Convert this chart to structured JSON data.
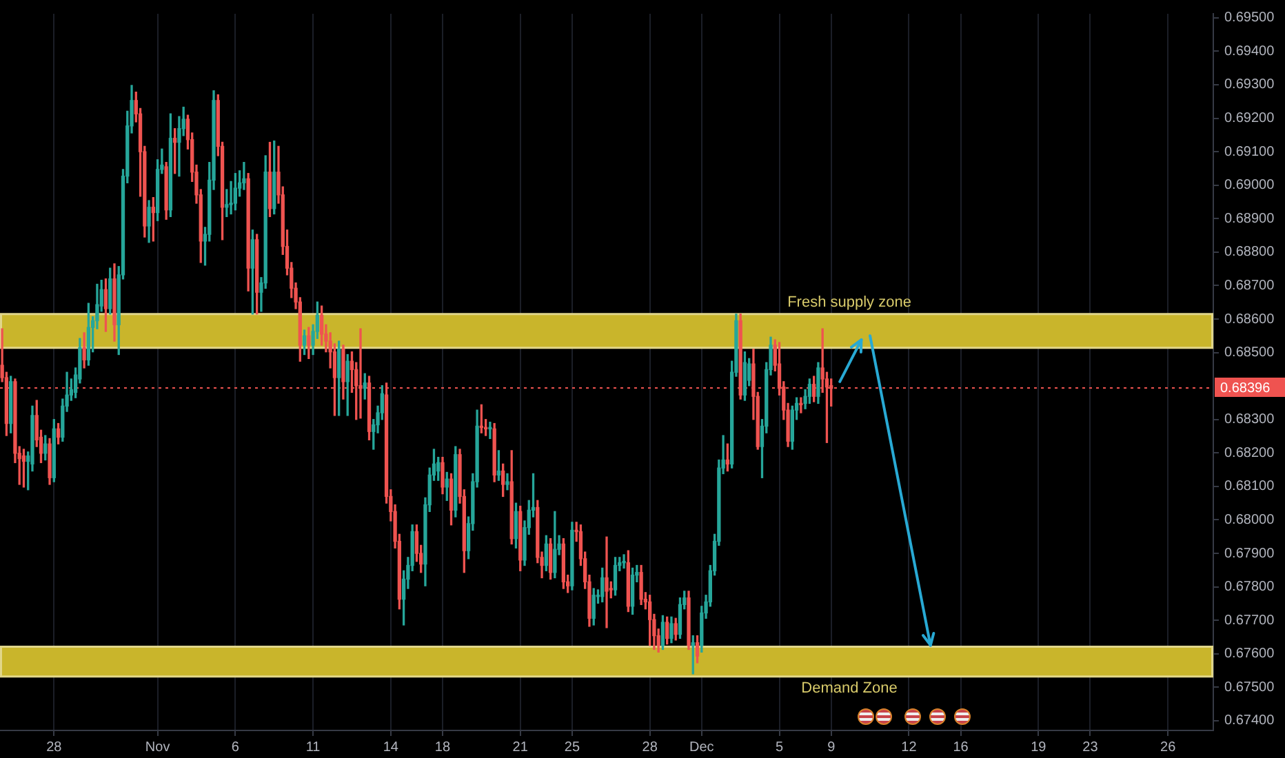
{
  "chart_data": {
    "type": "candlestick",
    "categories": [
      null,
      null,
      null,
      null,
      null,
      null,
      null,
      null,
      null,
      null,
      null,
      null,
      "28",
      null,
      null,
      null,
      null,
      null,
      null,
      null,
      null,
      null,
      null,
      null,
      null,
      null,
      null,
      null,
      null,
      null,
      null,
      null,
      null,
      null,
      null,
      null,
      "Nov",
      null,
      null,
      null,
      null,
      null,
      null,
      null,
      null,
      null,
      null,
      null,
      null,
      null,
      null,
      null,
      null,
      null,
      "6",
      null,
      null,
      null,
      null,
      null,
      null,
      null,
      null,
      null,
      null,
      null,
      null,
      null,
      null,
      null,
      null,
      null,
      "11",
      null,
      null,
      null,
      null,
      null,
      null,
      null,
      null,
      null,
      null,
      null,
      null,
      null,
      null,
      null,
      null,
      null,
      "14",
      null,
      null,
      null,
      null,
      null,
      null,
      null,
      null,
      null,
      null,
      null,
      "18",
      null,
      null,
      null,
      null,
      null,
      null,
      null,
      null,
      null,
      null,
      null,
      null,
      null,
      null,
      null,
      null,
      null,
      "21",
      null,
      null,
      null,
      null,
      null,
      null,
      null,
      null,
      null,
      null,
      null,
      "25",
      null,
      null,
      null,
      null,
      null,
      null,
      null,
      null,
      null,
      null,
      null,
      null,
      null,
      null,
      null,
      null,
      null,
      "28",
      null,
      null,
      null,
      null,
      null,
      null,
      null,
      null,
      null,
      null,
      null,
      "Dec",
      null,
      null,
      null,
      null,
      null,
      null,
      null,
      null,
      null,
      null,
      null,
      null,
      null,
      null,
      null,
      null,
      null,
      "5",
      null,
      null,
      null,
      null,
      null,
      null,
      null,
      null,
      null,
      null,
      null,
      "9",
      null,
      null,
      null,
      null,
      null,
      null,
      null,
      null,
      null,
      null,
      null,
      null,
      null,
      null,
      null,
      null,
      null,
      "12",
      null,
      null,
      null,
      null,
      null,
      null,
      null,
      null,
      null,
      null,
      null,
      "16",
      null,
      null,
      null,
      null,
      null,
      null,
      null,
      null,
      null,
      null,
      null,
      null,
      null,
      null,
      null,
      null,
      null,
      "19",
      null,
      null,
      null,
      null,
      null,
      null,
      null,
      null,
      null,
      null,
      null,
      "23",
      null,
      null,
      null,
      null,
      null,
      null,
      null,
      null,
      null,
      null,
      null,
      null,
      null,
      null,
      null,
      null,
      null,
      "26",
      null,
      null,
      null,
      null,
      null,
      null,
      null,
      null,
      null,
      null
    ],
    "ohlc": [
      [
        0.68462,
        0.68571,
        0.68413,
        0.68425
      ],
      [
        0.68425,
        0.68441,
        0.68252,
        0.68288
      ],
      [
        0.68288,
        0.68429,
        0.6826,
        0.68413
      ],
      [
        0.68413,
        0.68421,
        0.68171,
        0.68199
      ],
      [
        0.68199,
        0.68219,
        0.68106,
        0.68183
      ],
      [
        0.68191,
        0.68211,
        0.68098,
        0.68175
      ],
      [
        0.68175,
        0.68203,
        0.6809,
        0.68191
      ],
      [
        0.68167,
        0.6834,
        0.68146,
        0.68312
      ],
      [
        0.68312,
        0.68357,
        0.68219,
        0.68239
      ],
      [
        0.68247,
        0.68268,
        0.68171,
        0.68199
      ],
      [
        0.68199,
        0.68252,
        0.68179,
        0.68227
      ],
      [
        0.68227,
        0.68243,
        0.68106,
        0.68126
      ],
      [
        0.68126,
        0.683,
        0.68114,
        0.68272
      ],
      [
        0.68272,
        0.68288,
        0.68227,
        0.68247
      ],
      [
        0.68247,
        0.68361,
        0.68235,
        0.6834
      ],
      [
        0.6834,
        0.68441,
        0.68324,
        0.68373
      ],
      [
        0.68373,
        0.68421,
        0.68357,
        0.68389
      ],
      [
        0.68381,
        0.68454,
        0.68365,
        0.68433
      ],
      [
        0.68421,
        0.68542,
        0.68409,
        0.68514
      ],
      [
        0.68514,
        0.68559,
        0.68454,
        0.68478
      ],
      [
        0.68478,
        0.68647,
        0.68462,
        0.68575
      ],
      [
        0.68575,
        0.68607,
        0.68502,
        0.68595
      ],
      [
        0.68595,
        0.68704,
        0.68571,
        0.68643
      ],
      [
        0.68639,
        0.68716,
        0.68623,
        0.68688
      ],
      [
        0.68688,
        0.6872,
        0.68563,
        0.68631
      ],
      [
        0.68631,
        0.68752,
        0.68615,
        0.6872
      ],
      [
        0.6872,
        0.68765,
        0.68534,
        0.68583
      ],
      [
        0.68583,
        0.68757,
        0.68494,
        0.68732
      ],
      [
        0.68732,
        0.69047,
        0.6872,
        0.69027
      ],
      [
        0.69027,
        0.69221,
        0.69007,
        0.69177
      ],
      [
        0.69177,
        0.69298,
        0.69156,
        0.69253
      ],
      [
        0.69253,
        0.69278,
        0.69189,
        0.69213
      ],
      [
        0.69213,
        0.69229,
        0.68967,
        0.691
      ],
      [
        0.691,
        0.69116,
        0.68845,
        0.68878
      ],
      [
        0.68878,
        0.68954,
        0.68829,
        0.68934
      ],
      [
        0.68934,
        0.68963,
        0.68833,
        0.68918
      ],
      [
        0.68918,
        0.69076,
        0.68894,
        0.69047
      ],
      [
        0.69047,
        0.69108,
        0.69035,
        0.6906
      ],
      [
        0.69055,
        0.69068,
        0.68898,
        0.68926
      ],
      [
        0.68926,
        0.69213,
        0.68906,
        0.6914
      ],
      [
        0.6914,
        0.69169,
        0.69035,
        0.69128
      ],
      [
        0.69128,
        0.69205,
        0.69027,
        0.69169
      ],
      [
        0.69169,
        0.69233,
        0.69148,
        0.69197
      ],
      [
        0.69197,
        0.69209,
        0.69108,
        0.69136
      ],
      [
        0.69136,
        0.69156,
        0.69011,
        0.69039
      ],
      [
        0.69039,
        0.6906,
        0.68946,
        0.68971
      ],
      [
        0.68971,
        0.68987,
        0.68769,
        0.68833
      ],
      [
        0.68833,
        0.68874,
        0.68761,
        0.68853
      ],
      [
        0.68853,
        0.69068,
        0.68833,
        0.69015
      ],
      [
        0.69015,
        0.69282,
        0.68987,
        0.69253
      ],
      [
        0.69253,
        0.6927,
        0.69088,
        0.69116
      ],
      [
        0.69116,
        0.69128,
        0.68837,
        0.68934
      ],
      [
        0.68934,
        0.68987,
        0.68906,
        0.68942
      ],
      [
        0.68942,
        0.69011,
        0.68914,
        0.68946
      ],
      [
        0.68946,
        0.69035,
        0.68926,
        0.68991
      ],
      [
        0.68991,
        0.69043,
        0.68967,
        0.69007
      ],
      [
        0.69007,
        0.69068,
        0.68987,
        0.69019
      ],
      [
        0.69019,
        0.69035,
        0.68684,
        0.68752
      ],
      [
        0.68752,
        0.68866,
        0.68615,
        0.68837
      ],
      [
        0.68837,
        0.68853,
        0.68615,
        0.6868
      ],
      [
        0.6868,
        0.68724,
        0.68623,
        0.68708
      ],
      [
        0.68708,
        0.69088,
        0.68692,
        0.69039
      ],
      [
        0.69039,
        0.69128,
        0.68906,
        0.6893
      ],
      [
        0.6893,
        0.69132,
        0.68914,
        0.69039
      ],
      [
        0.69039,
        0.69116,
        0.68946,
        0.68971
      ],
      [
        0.68971,
        0.68995,
        0.68793,
        0.68817
      ],
      [
        0.68817,
        0.68866,
        0.68732,
        0.68752
      ],
      [
        0.68752,
        0.68769,
        0.68664,
        0.68692
      ],
      [
        0.68692,
        0.68708,
        0.68631,
        0.68651
      ],
      [
        0.68651,
        0.68664,
        0.68474,
        0.68522
      ],
      [
        0.68522,
        0.68567,
        0.68494,
        0.6855
      ],
      [
        0.6855,
        0.68575,
        0.68482,
        0.68522
      ],
      [
        0.68522,
        0.68583,
        0.68494,
        0.68563
      ],
      [
        0.68563,
        0.68651,
        0.68542,
        0.68611
      ],
      [
        0.68611,
        0.68639,
        0.68522,
        0.68555
      ],
      [
        0.68555,
        0.68583,
        0.68502,
        0.68534
      ],
      [
        0.68534,
        0.68559,
        0.68454,
        0.68502
      ],
      [
        0.68502,
        0.68526,
        0.68312,
        0.68425
      ],
      [
        0.68425,
        0.68534,
        0.68312,
        0.6851
      ],
      [
        0.6851,
        0.68522,
        0.68361,
        0.68413
      ],
      [
        0.68413,
        0.68494,
        0.68312,
        0.68474
      ],
      [
        0.68474,
        0.68502,
        0.68381,
        0.68449
      ],
      [
        0.68449,
        0.6847,
        0.683,
        0.68401
      ],
      [
        0.68401,
        0.68571,
        0.68304,
        0.68393
      ],
      [
        0.68393,
        0.68437,
        0.68361,
        0.68409
      ],
      [
        0.68409,
        0.68429,
        0.68239,
        0.68264
      ],
      [
        0.68264,
        0.683,
        0.68211,
        0.68284
      ],
      [
        0.68284,
        0.6834,
        0.6826,
        0.6832
      ],
      [
        0.6832,
        0.68401,
        0.683,
        0.68377
      ],
      [
        0.68373,
        0.68409,
        0.6805,
        0.6807
      ],
      [
        0.6807,
        0.6809,
        0.67997,
        0.68025
      ],
      [
        0.68025,
        0.68045,
        0.67916,
        0.67936
      ],
      [
        0.67936,
        0.67957,
        0.67734,
        0.67763
      ],
      [
        0.67763,
        0.67848,
        0.67686,
        0.67823
      ],
      [
        0.67823,
        0.67888,
        0.67795,
        0.67864
      ],
      [
        0.67864,
        0.67985,
        0.67848,
        0.67965
      ],
      [
        0.67965,
        0.67985,
        0.67876,
        0.679
      ],
      [
        0.679,
        0.67924,
        0.67843,
        0.67868
      ],
      [
        0.67868,
        0.68066,
        0.67803,
        0.68045
      ],
      [
        0.68045,
        0.68155,
        0.68025,
        0.68134
      ],
      [
        0.68134,
        0.68211,
        0.68118,
        0.68167
      ],
      [
        0.68146,
        0.68187,
        0.68118,
        0.68171
      ],
      [
        0.68171,
        0.68187,
        0.68078,
        0.68098
      ],
      [
        0.68098,
        0.68142,
        0.68058,
        0.68122
      ],
      [
        0.68122,
        0.68138,
        0.67985,
        0.68029
      ],
      [
        0.68029,
        0.68219,
        0.68009,
        0.68195
      ],
      [
        0.68195,
        0.68211,
        0.6805,
        0.6807
      ],
      [
        0.6807,
        0.6809,
        0.67843,
        0.67908
      ],
      [
        0.67908,
        0.68009,
        0.67884,
        0.67989
      ],
      [
        0.67989,
        0.68138,
        0.67969,
        0.68114
      ],
      [
        0.68114,
        0.68328,
        0.68098,
        0.6828
      ],
      [
        0.6828,
        0.68344,
        0.6826,
        0.68276
      ],
      [
        0.68276,
        0.683,
        0.68252,
        0.68272
      ],
      [
        0.68272,
        0.68292,
        0.68243,
        0.68276
      ],
      [
        0.68272,
        0.68288,
        0.68114,
        0.68134
      ],
      [
        0.68134,
        0.68207,
        0.68118,
        0.68146
      ],
      [
        0.68146,
        0.68167,
        0.6807,
        0.68106
      ],
      [
        0.68106,
        0.68138,
        0.6809,
        0.68114
      ],
      [
        0.68114,
        0.68207,
        0.67928,
        0.67944
      ],
      [
        0.67944,
        0.6805,
        0.67916,
        0.68025
      ],
      [
        0.68025,
        0.68041,
        0.67848,
        0.6788
      ],
      [
        0.6788,
        0.67997,
        0.67864,
        0.67977
      ],
      [
        0.67977,
        0.68058,
        0.67957,
        0.68029
      ],
      [
        0.68029,
        0.68138,
        0.68009,
        0.68037
      ],
      [
        0.68037,
        0.68058,
        0.67872,
        0.67888
      ],
      [
        0.67888,
        0.67904,
        0.67827,
        0.67864
      ],
      [
        0.67864,
        0.67953,
        0.67848,
        0.67928
      ],
      [
        0.67928,
        0.67944,
        0.67823,
        0.67843
      ],
      [
        0.67843,
        0.68025,
        0.67827,
        0.67912
      ],
      [
        0.67912,
        0.67953,
        0.67896,
        0.67928
      ],
      [
        0.67928,
        0.67944,
        0.67795,
        0.67815
      ],
      [
        0.67815,
        0.67835,
        0.67783,
        0.67803
      ],
      [
        0.67803,
        0.67993,
        0.67791,
        0.67969
      ],
      [
        0.67969,
        0.67993,
        0.67936,
        0.67965
      ],
      [
        0.67965,
        0.67985,
        0.67864,
        0.67884
      ],
      [
        0.67884,
        0.67904,
        0.67795,
        0.67815
      ],
      [
        0.67815,
        0.67835,
        0.67682,
        0.67706
      ],
      [
        0.67706,
        0.67795,
        0.67686,
        0.67775
      ],
      [
        0.67771,
        0.67791,
        0.67751,
        0.67775
      ],
      [
        0.67771,
        0.67856,
        0.67755,
        0.67827
      ],
      [
        0.67827,
        0.67949,
        0.67678,
        0.67787
      ],
      [
        0.67795,
        0.67815,
        0.67767,
        0.67791
      ],
      [
        0.67791,
        0.67888,
        0.67775,
        0.67864
      ],
      [
        0.67864,
        0.67888,
        0.67848,
        0.67872
      ],
      [
        0.67872,
        0.67896,
        0.67856,
        0.67876
      ],
      [
        0.67872,
        0.67908,
        0.67726,
        0.67742
      ],
      [
        0.67742,
        0.67856,
        0.67718,
        0.67835
      ],
      [
        0.67835,
        0.67864,
        0.67815,
        0.67843
      ],
      [
        0.67843,
        0.67864,
        0.67747,
        0.67763
      ],
      [
        0.67763,
        0.67783,
        0.67734,
        0.67755
      ],
      [
        0.67755,
        0.67775,
        0.67625,
        0.67702
      ],
      [
        0.67702,
        0.67718,
        0.67613,
        0.67654
      ],
      [
        0.67654,
        0.67674,
        0.67605,
        0.67625
      ],
      [
        0.67625,
        0.67714,
        0.67613,
        0.67694
      ],
      [
        0.67694,
        0.6771,
        0.67629,
        0.67646
      ],
      [
        0.67646,
        0.6771,
        0.67633,
        0.6769
      ],
      [
        0.6769,
        0.67706,
        0.67641,
        0.67658
      ],
      [
        0.67658,
        0.67767,
        0.67646,
        0.67747
      ],
      [
        0.67747,
        0.67787,
        0.67734,
        0.67767
      ],
      [
        0.67767,
        0.67787,
        0.67613,
        0.67625
      ],
      [
        0.67625,
        0.67654,
        0.6754,
        0.67633
      ],
      [
        0.67633,
        0.67654,
        0.67573,
        0.67593
      ],
      [
        0.67625,
        0.67742,
        0.67605,
        0.67722
      ],
      [
        0.67722,
        0.67775,
        0.67706,
        0.67755
      ],
      [
        0.67755,
        0.67864,
        0.67742,
        0.67848
      ],
      [
        0.67848,
        0.67957,
        0.67835,
        0.67936
      ],
      [
        0.67936,
        0.68179,
        0.67924,
        0.68155
      ],
      [
        0.68155,
        0.68252,
        0.68138,
        0.68179
      ],
      [
        0.68179,
        0.68227,
        0.68146,
        0.68167
      ],
      [
        0.68167,
        0.68474,
        0.68155,
        0.68441
      ],
      [
        0.68441,
        0.68615,
        0.68429,
        0.68595
      ],
      [
        0.68595,
        0.68615,
        0.68361,
        0.68373
      ],
      [
        0.68373,
        0.68502,
        0.68357,
        0.6847
      ],
      [
        0.68417,
        0.68482,
        0.68401,
        0.68466
      ],
      [
        0.68466,
        0.6851,
        0.683,
        0.68369
      ],
      [
        0.68369,
        0.68381,
        0.68211,
        0.68219
      ],
      [
        0.68219,
        0.683,
        0.68126,
        0.6828
      ],
      [
        0.6828,
        0.6847,
        0.6826,
        0.68449
      ],
      [
        0.68449,
        0.68546,
        0.68433,
        0.68522
      ],
      [
        0.68522,
        0.68538,
        0.68445,
        0.68462
      ],
      [
        0.68466,
        0.6853,
        0.68373,
        0.68393
      ],
      [
        0.68397,
        0.68413,
        0.683,
        0.68328
      ],
      [
        0.68328,
        0.68348,
        0.68219,
        0.68235
      ],
      [
        0.68235,
        0.6834,
        0.68211,
        0.68328
      ],
      [
        0.68328,
        0.68365,
        0.683,
        0.68348
      ],
      [
        0.68348,
        0.68365,
        0.6832,
        0.68344
      ],
      [
        0.68348,
        0.68389,
        0.68332,
        0.68369
      ],
      [
        0.68369,
        0.68421,
        0.68348,
        0.68405
      ],
      [
        0.68405,
        0.68429,
        0.68353,
        0.68369
      ],
      [
        0.68369,
        0.6847,
        0.68348,
        0.68454
      ],
      [
        0.68454,
        0.68571,
        0.68381,
        0.68421
      ],
      [
        0.68421,
        0.68441,
        0.68231,
        0.68397
      ],
      [
        0.68401,
        0.68421,
        0.6834,
        0.68393
      ],
      null,
      null,
      null,
      null,
      null,
      null,
      null,
      null,
      null,
      null,
      null,
      null,
      null,
      null,
      null,
      null,
      null,
      null,
      null,
      null,
      null,
      null,
      null,
      null,
      null,
      null,
      null,
      null,
      null,
      null,
      null,
      null,
      null,
      null,
      null,
      null,
      null,
      null,
      null,
      null,
      null,
      null,
      null,
      null,
      null,
      null,
      null,
      null,
      null,
      null,
      null,
      null,
      null,
      null,
      null,
      null,
      null,
      null,
      null,
      null,
      null,
      null,
      null,
      null,
      null,
      null,
      null,
      null,
      null,
      null,
      null,
      null,
      null,
      null,
      null,
      null,
      null,
      null,
      null,
      null,
      null,
      null,
      null,
      null,
      null,
      null,
      null,
      null
    ],
    "colors": [
      "#ef5350",
      "#ef5350",
      "#26a69a",
      "#ef5350",
      "#ef5350",
      "#ef5350",
      "#26a69a",
      "#26a69a",
      "#ef5350",
      "#ef5350",
      "#26a69a",
      "#ef5350",
      "#26a69a",
      "#ef5350",
      "#26a69a",
      "#26a69a",
      "#26a69a",
      "#26a69a",
      "#26a69a",
      "#ef5350",
      "#26a69a",
      "#26a69a",
      "#26a69a",
      "#26a69a",
      "#ef5350",
      "#26a69a",
      "#ef5350",
      "#26a69a",
      "#26a69a",
      "#26a69a",
      "#26a69a",
      "#ef5350",
      "#ef5350",
      "#ef5350",
      "#26a69a",
      "#ef5350",
      "#26a69a",
      "#26a69a",
      "#ef5350",
      "#26a69a",
      "#ef5350",
      "#26a69a",
      "#26a69a",
      "#ef5350",
      "#ef5350",
      "#ef5350",
      "#ef5350",
      "#26a69a",
      "#26a69a",
      "#26a69a",
      "#ef5350",
      "#ef5350",
      "#26a69a",
      "#26a69a",
      "#26a69a",
      "#26a69a",
      "#26a69a",
      "#ef5350",
      "#26a69a",
      "#ef5350",
      "#26a69a",
      "#26a69a",
      "#ef5350",
      "#26a69a",
      "#ef5350",
      "#ef5350",
      "#ef5350",
      "#ef5350",
      "#ef5350",
      "#ef5350",
      "#26a69a",
      "#ef5350",
      "#26a69a",
      "#26a69a",
      "#ef5350",
      "#ef5350",
      "#ef5350",
      "#ef5350",
      "#26a69a",
      "#ef5350",
      "#26a69a",
      "#ef5350",
      "#ef5350",
      "#ef5350",
      "#26a69a",
      "#ef5350",
      "#26a69a",
      "#26a69a",
      "#26a69a",
      "#ef5350",
      "#ef5350",
      "#ef5350",
      "#ef5350",
      "#26a69a",
      "#26a69a",
      "#26a69a",
      "#ef5350",
      "#ef5350",
      "#26a69a",
      "#26a69a",
      "#26a69a",
      "#26a69a",
      "#ef5350",
      "#26a69a",
      "#ef5350",
      "#26a69a",
      "#ef5350",
      "#ef5350",
      "#26a69a",
      "#26a69a",
      "#26a69a",
      "#ef5350",
      "#ef5350",
      "#26a69a",
      "#ef5350",
      "#26a69a",
      "#ef5350",
      "#26a69a",
      "#ef5350",
      "#26a69a",
      "#ef5350",
      "#26a69a",
      "#26a69a",
      "#26a69a",
      "#ef5350",
      "#ef5350",
      "#26a69a",
      "#ef5350",
      "#26a69a",
      "#26a69a",
      "#ef5350",
      "#ef5350",
      "#26a69a",
      "#ef5350",
      "#ef5350",
      "#ef5350",
      "#ef5350",
      "#26a69a",
      "#26a69a",
      "#26a69a",
      "#ef5350",
      "#ef5350",
      "#26a69a",
      "#26a69a",
      "#26a69a",
      "#ef5350",
      "#26a69a",
      "#26a69a",
      "#ef5350",
      "#ef5350",
      "#ef5350",
      "#ef5350",
      "#ef5350",
      "#26a69a",
      "#ef5350",
      "#26a69a",
      "#ef5350",
      "#26a69a",
      "#26a69a",
      "#ef5350",
      "#26a69a",
      "#ef5350",
      "#26a69a",
      "#26a69a",
      "#26a69a",
      "#26a69a",
      "#26a69a",
      "#26a69a",
      "#ef5350",
      "#26a69a",
      "#26a69a",
      "#ef5350",
      "#26a69a",
      "#26a69a",
      "#ef5350",
      "#ef5350",
      "#26a69a",
      "#26a69a",
      "#26a69a",
      "#ef5350",
      "#ef5350",
      "#ef5350",
      "#ef5350",
      "#26a69a",
      "#26a69a",
      "#ef5350",
      "#26a69a",
      "#26a69a",
      "#ef5350",
      "#26a69a",
      "#ef5350",
      "#ef5350",
      "#ef5350",
      null,
      null,
      null,
      null,
      null,
      null,
      null,
      null,
      null,
      null,
      null,
      null,
      null,
      null,
      null,
      null,
      null,
      null,
      null,
      null,
      null,
      null,
      null,
      null,
      null,
      null,
      null,
      null,
      null,
      null,
      null,
      null,
      null,
      null,
      null,
      null,
      null,
      null,
      null,
      null,
      null,
      null,
      null,
      null,
      null,
      null,
      null,
      null,
      null,
      null,
      null,
      null,
      null,
      null,
      null,
      null,
      null,
      null,
      null,
      null,
      null,
      null,
      null,
      null,
      null,
      null,
      null,
      null,
      null,
      null,
      null,
      null,
      null,
      null,
      null,
      null,
      null,
      null,
      null,
      null,
      null,
      null,
      null,
      null,
      null,
      null,
      null,
      null
    ],
    "series": [
      {
        "type": "line",
        "color": "#28a9d4",
        "values": [
          null,
          null,
          null,
          null,
          null,
          null,
          null,
          null,
          null,
          null,
          null,
          null,
          null,
          null,
          null,
          null,
          null,
          null,
          null,
          null,
          null,
          null,
          null,
          null,
          null,
          null,
          null,
          null,
          null,
          null,
          null,
          null,
          null,
          null,
          null,
          null,
          null,
          null,
          null,
          null,
          null,
          null,
          null,
          null,
          null,
          null,
          null,
          null,
          null,
          null,
          null,
          null,
          null,
          null,
          null,
          null,
          null,
          null,
          null,
          null,
          null,
          null,
          null,
          null,
          null,
          null,
          null,
          null,
          null,
          null,
          null,
          null,
          null,
          null,
          null,
          null,
          null,
          null,
          null,
          null,
          null,
          null,
          null,
          null,
          null,
          null,
          null,
          null,
          null,
          null,
          null,
          null,
          null,
          null,
          null,
          null,
          null,
          null,
          null,
          null,
          null,
          null,
          null,
          null,
          null,
          null,
          null,
          null,
          null,
          null,
          null,
          null,
          null,
          null,
          null,
          null,
          null,
          null,
          null,
          null,
          null,
          null,
          null,
          null,
          null,
          null,
          null,
          null,
          null,
          null,
          null,
          null,
          null,
          null,
          null,
          null,
          null,
          null,
          null,
          null,
          null,
          null,
          null,
          null,
          null,
          null,
          null,
          null,
          null,
          null,
          null,
          null,
          null,
          null,
          null,
          null,
          null,
          null,
          null,
          null,
          null,
          null,
          null,
          null,
          null,
          null,
          null,
          null,
          null,
          null,
          null,
          null,
          null,
          null,
          null,
          null,
          null,
          null,
          null,
          null,
          null,
          null,
          null,
          null,
          null,
          null,
          null,
          null,
          null,
          null,
          null,
          null,
          null,
          null,
          0.68413,
          null,
          null,
          null,
          null,
          0.68538,
          null,
          null,
          null,
          null,
          null,
          null,
          null,
          null,
          null,
          null,
          null,
          null,
          null,
          null,
          null,
          null,
          null,
          null,
          null,
          null,
          null,
          null,
          null,
          null,
          null,
          null,
          null,
          null,
          null,
          null,
          null,
          null,
          null,
          null,
          null,
          null,
          null,
          null,
          null,
          null,
          null,
          null,
          null,
          null,
          null,
          null,
          null,
          null,
          null,
          null,
          null,
          null,
          null,
          null,
          null,
          null,
          null,
          null,
          null,
          null,
          null,
          null,
          null,
          null,
          null,
          null,
          null,
          null,
          null,
          null,
          null,
          null,
          null,
          null,
          null,
          null,
          null,
          null,
          null,
          null,
          null
        ]
      },
      {
        "type": "line",
        "color": "#28a9d4",
        "values": [
          null,
          null,
          null,
          null,
          null,
          null,
          null,
          null,
          null,
          null,
          null,
          null,
          null,
          null,
          null,
          null,
          null,
          null,
          null,
          null,
          null,
          null,
          null,
          null,
          null,
          null,
          null,
          null,
          null,
          null,
          null,
          null,
          null,
          null,
          null,
          null,
          null,
          null,
          null,
          null,
          null,
          null,
          null,
          null,
          null,
          null,
          null,
          null,
          null,
          null,
          null,
          null,
          null,
          null,
          null,
          null,
          null,
          null,
          null,
          null,
          null,
          null,
          null,
          null,
          null,
          null,
          null,
          null,
          null,
          null,
          null,
          null,
          null,
          null,
          null,
          null,
          null,
          null,
          null,
          null,
          null,
          null,
          null,
          null,
          null,
          null,
          null,
          null,
          null,
          null,
          null,
          null,
          null,
          null,
          null,
          null,
          null,
          null,
          null,
          null,
          null,
          null,
          null,
          null,
          null,
          null,
          null,
          null,
          null,
          null,
          null,
          null,
          null,
          null,
          null,
          null,
          null,
          null,
          null,
          null,
          null,
          null,
          null,
          null,
          null,
          null,
          null,
          null,
          null,
          null,
          null,
          null,
          null,
          null,
          null,
          null,
          null,
          null,
          null,
          null,
          null,
          null,
          null,
          null,
          null,
          null,
          null,
          null,
          null,
          null,
          null,
          null,
          null,
          null,
          null,
          null,
          null,
          null,
          null,
          null,
          null,
          null,
          null,
          null,
          null,
          null,
          null,
          null,
          null,
          null,
          null,
          null,
          null,
          null,
          null,
          null,
          null,
          null,
          null,
          null,
          null,
          null,
          null,
          null,
          null,
          null,
          null,
          null,
          null,
          null,
          null,
          null,
          null,
          null,
          null,
          null,
          null,
          null,
          null,
          null,
          null,
          0.6855,
          null,
          null,
          null,
          null,
          null,
          null,
          null,
          null,
          null,
          null,
          null,
          null,
          null,
          0.67625,
          null,
          null,
          null,
          null,
          null,
          null,
          null,
          null,
          null,
          null,
          null,
          null,
          null,
          null,
          null,
          null,
          null,
          null,
          null,
          null,
          null,
          null,
          null,
          null,
          null,
          null,
          null,
          null,
          null,
          null,
          null,
          null,
          null,
          null,
          null,
          null,
          null,
          null,
          null,
          null,
          null,
          null,
          null,
          null,
          null,
          null,
          null,
          null,
          null,
          null,
          null,
          null,
          null,
          null,
          null,
          null,
          null,
          null,
          null,
          null,
          null,
          null,
          null,
          null,
          null
        ]
      }
    ],
    "ylim": [
      0.67371,
      0.69512
    ],
    "yticks": [
      {
        "value": 0.674,
        "label": "0.67400"
      },
      {
        "value": 0.675,
        "label": "0.67500"
      },
      {
        "value": 0.676,
        "label": "0.67600"
      },
      {
        "value": 0.677,
        "label": "0.67700"
      },
      {
        "value": 0.678,
        "label": "0.67800"
      },
      {
        "value": 0.679,
        "label": "0.67900"
      },
      {
        "value": 0.68,
        "label": "0.68000"
      },
      {
        "value": 0.681,
        "label": "0.68100"
      },
      {
        "value": 0.682,
        "label": "0.68200"
      },
      {
        "value": 0.683,
        "label": "0.68300"
      },
      {
        "value": 0.685,
        "label": "0.68500"
      },
      {
        "value": 0.686,
        "label": "0.68600"
      },
      {
        "value": 0.687,
        "label": "0.68700"
      },
      {
        "value": 0.688,
        "label": "0.68800"
      },
      {
        "value": 0.689,
        "label": "0.68900"
      },
      {
        "value": 0.69,
        "label": "0.69000"
      },
      {
        "value": 0.691,
        "label": "0.69100"
      },
      {
        "value": 0.692,
        "label": "0.69200"
      },
      {
        "value": 0.693,
        "label": "0.69300"
      },
      {
        "value": 0.694,
        "label": "0.69400"
      },
      {
        "value": 0.695,
        "label": "0.69500"
      }
    ],
    "grid": "x",
    "bands": [
      {
        "axis": "y",
        "from": 0.68514,
        "to": 0.68615,
        "label": "Fresh supply zone",
        "color": "#c9b52b"
      },
      {
        "axis": "y",
        "from": 0.67532,
        "to": 0.67621,
        "label": "Demand Zone",
        "color": "#c9b52b"
      }
    ],
    "ref_lines": [
      {
        "axis": "y",
        "value": 0.68396,
        "label": "0.68396",
        "color": "#ef5350",
        "line_style": "dotted"
      }
    ]
  }
}
